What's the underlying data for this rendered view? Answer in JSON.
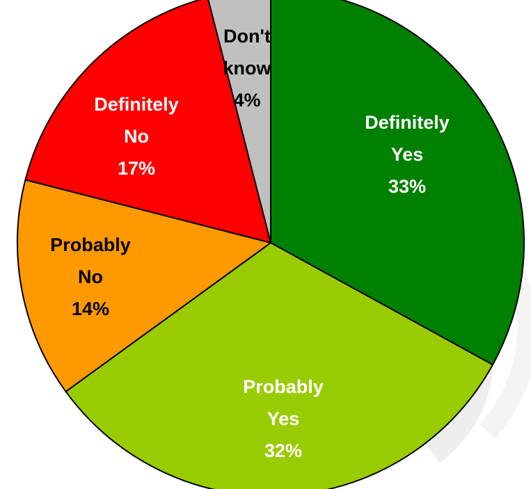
{
  "chart_data": {
    "type": "pie",
    "start": "12 o'clock",
    "direction": "clockwise",
    "slices": [
      {
        "category": "Definitely Yes",
        "label_lines": [
          "Definitely",
          "Yes"
        ],
        "value": 33,
        "value_label": "33%",
        "color": "#008000",
        "label_color": "#ffffff"
      },
      {
        "category": "Probably Yes",
        "label_lines": [
          "Probably",
          "Yes"
        ],
        "value": 32,
        "value_label": "32%",
        "color": "#99cc00",
        "label_color": "#ffffff"
      },
      {
        "category": "Probably No",
        "label_lines": [
          "Probably",
          "No"
        ],
        "value": 14,
        "value_label": "14%",
        "color": "#ff9900",
        "label_color": "#000000"
      },
      {
        "category": "Definitely No",
        "label_lines": [
          "Definitely",
          "No"
        ],
        "value": 17,
        "value_label": "17%",
        "color": "#ff0000",
        "label_color": "#ffffff"
      },
      {
        "category": "Don't know",
        "label_lines": [
          "Don't",
          "know"
        ],
        "value": 4,
        "value_label": "4%",
        "color": "#c0c0c0",
        "label_color": "#000000"
      }
    ]
  }
}
